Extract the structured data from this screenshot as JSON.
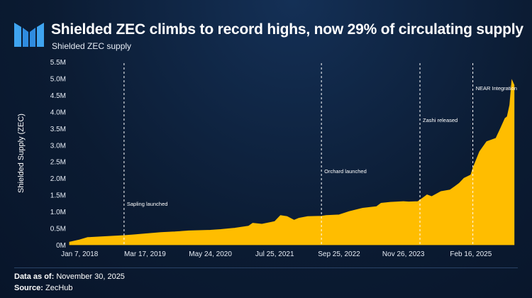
{
  "header": {
    "title": "Shielded ZEC climbs to record highs, now 29% of circulating supply",
    "subtitle": "Shielded ZEC supply"
  },
  "colors": {
    "background": "#0b1b32",
    "accent": "#ffbd00",
    "text": "#ffffff"
  },
  "chart_data": {
    "type": "area",
    "ylabel": "Shielded Supply (ZEC)",
    "xlabel": "",
    "x_ticks": [
      "Jan 7, 2018",
      "Mar 17, 2019",
      "May 24, 2020",
      "Jul 25, 2021",
      "Sep 25, 2022",
      "Nov 26, 2023",
      "Feb 16, 2025"
    ],
    "y_ticks": [
      "0M",
      "0.5M",
      "1.0M",
      "1.5M",
      "2.0M",
      "2.5M",
      "3.0M",
      "3.5M",
      "4.0M",
      "4.5M",
      "5.0M",
      "5.5M"
    ],
    "ylim": [
      0,
      5500000
    ],
    "xlim": [
      "2017-11-01",
      "2025-12-01"
    ],
    "grid": false,
    "series": [
      {
        "values_x": [
          "2017-11-01",
          "2018-01-07",
          "2018-03-01",
          "2018-06-01",
          "2018-10-29",
          "2019-01-01",
          "2019-03-17",
          "2019-07-01",
          "2019-10-01",
          "2020-01-01",
          "2020-05-24",
          "2020-08-01",
          "2020-11-01",
          "2021-02-01",
          "2021-03-01",
          "2021-05-01",
          "2021-07-25",
          "2021-09-01",
          "2021-10-15",
          "2021-12-01",
          "2022-01-01",
          "2022-03-01",
          "2022-05-31",
          "2022-07-01",
          "2022-09-25",
          "2022-12-01",
          "2023-03-01",
          "2023-06-01",
          "2023-07-01",
          "2023-09-01",
          "2023-11-26",
          "2024-01-01",
          "2024-03-01",
          "2024-04-01",
          "2024-05-01",
          "2024-06-01",
          "2024-08-01",
          "2024-10-01",
          "2024-11-01",
          "2024-12-01",
          "2025-01-01",
          "2025-02-16",
          "2025-03-01",
          "2025-04-15",
          "2025-06-01",
          "2025-08-01",
          "2025-09-01",
          "2025-10-01",
          "2025-10-15",
          "2025-11-01",
          "2025-11-15",
          "2025-11-30"
        ],
        "values_y": [
          80000,
          150000,
          220000,
          240000,
          280000,
          300000,
          330000,
          370000,
          390000,
          420000,
          440000,
          460000,
          500000,
          560000,
          650000,
          620000,
          700000,
          880000,
          850000,
          740000,
          800000,
          850000,
          860000,
          880000,
          900000,
          1000000,
          1100000,
          1150000,
          1250000,
          1280000,
          1300000,
          1290000,
          1300000,
          1400000,
          1500000,
          1450000,
          1600000,
          1650000,
          1750000,
          1850000,
          2000000,
          2100000,
          2300000,
          2800000,
          3100000,
          3200000,
          3500000,
          3800000,
          3850000,
          4200000,
          4950000,
          4800000
        ]
      }
    ],
    "annotations": [
      {
        "date": "2018-10-29",
        "label": "Sapling launched"
      },
      {
        "date": "2022-05-31",
        "label": "Orchard launched"
      },
      {
        "date": "2024-03-15",
        "label": "Zashi released"
      },
      {
        "date": "2025-03-01",
        "label": "NEAR Integration"
      }
    ]
  },
  "footer": {
    "data_as_of_label": "Data as of:",
    "data_as_of_value": "November 30, 2025",
    "source_label": "Source:",
    "source_value": "ZecHub"
  }
}
